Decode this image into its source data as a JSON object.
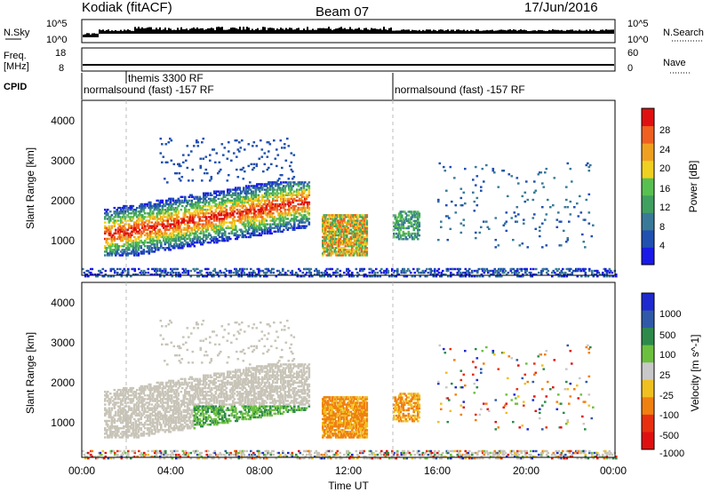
{
  "header": {
    "radar": "Kodiak (fitACF)",
    "beam": "Beam 07",
    "date": "17/Jun/2016"
  },
  "nsky_panel": {
    "left_label": "N.Sky",
    "right_label": "N.Search",
    "left_ticks": [
      "10^5",
      "10^0"
    ],
    "right_ticks": [
      "10^5",
      "10^0"
    ]
  },
  "freq_panel": {
    "left_label_top": "Freq.",
    "left_label_unit": "[MHz]",
    "right_label": "Nave",
    "left_ticks": [
      "18",
      "8"
    ],
    "right_ticks": [
      "60",
      "0"
    ]
  },
  "cpid_panel": {
    "label": "CPID",
    "segments": [
      {
        "start": 0.0,
        "end": 14.0,
        "label": "normalsound (fast) -157 RF"
      },
      {
        "start": 2.0,
        "end": 2.0,
        "label": "themis 3300 RF"
      },
      {
        "start": 14.0,
        "end": 24.0,
        "label": "normalsound (fast) -157 RF"
      }
    ]
  },
  "xaxis": {
    "label": "Time UT",
    "ticks": [
      "00:00",
      "04:00",
      "08:00",
      "12:00",
      "16:00",
      "20:00",
      "00:00"
    ]
  },
  "power_panel": {
    "ylabel": "Slant Range [km]",
    "yticks": [
      "1000",
      "2000",
      "3000",
      "4000"
    ],
    "colorbar_label": "Power [dB]",
    "colorbar_ticks": [
      "4",
      "8",
      "12",
      "16",
      "20",
      "24",
      "28"
    ],
    "colors": [
      "#1a1ae8",
      "#2050b0",
      "#3a7a98",
      "#40a060",
      "#58c050",
      "#f0d020",
      "#f0a020",
      "#f06020",
      "#e01010"
    ]
  },
  "velocity_panel": {
    "ylabel": "Slant Range [km]",
    "yticks": [
      "1000",
      "2000",
      "3000",
      "4000"
    ],
    "colorbar_label": "Velocity [m s^-1]",
    "colorbar_ticks": [
      "1000",
      "500",
      "100",
      "25",
      "-25",
      "-100",
      "-500",
      "-1000"
    ],
    "colors": [
      "#1e2ad0",
      "#305aa8",
      "#2e8a4a",
      "#6cc040",
      "#c8c8c8",
      "#f0c020",
      "#f08010",
      "#e83010",
      "#e01010"
    ],
    "gray_scatter_color": "#c8c4b8"
  },
  "chart_data": {
    "type": "heatmap",
    "x_range_hours": [
      0,
      24
    ],
    "y_range_km": [
      180,
      4500
    ],
    "scatter_regions": [
      {
        "name": "main E/F region",
        "t_start": 1.0,
        "t_end": 10.2,
        "range_min": 700,
        "range_max": 2500,
        "power_peak_db": 28,
        "velocity": "mixed gray/green"
      },
      {
        "name": "mid-day patch",
        "t_start": 10.8,
        "t_end": 12.8,
        "range_min": 700,
        "range_max": 1700,
        "power_peak_db": 24,
        "velocity": "-100 to -500"
      },
      {
        "name": "afternoon patch",
        "t_start": 14.0,
        "t_end": 15.2,
        "range_min": 1100,
        "range_max": 1800,
        "power_peak_db": 16,
        "velocity": "-100 to -500"
      },
      {
        "name": "near-range clutter",
        "t_start": 0.0,
        "t_end": 24.0,
        "range_min": 180,
        "range_max": 400,
        "power_peak_db": 8,
        "velocity": "mixed"
      }
    ]
  }
}
